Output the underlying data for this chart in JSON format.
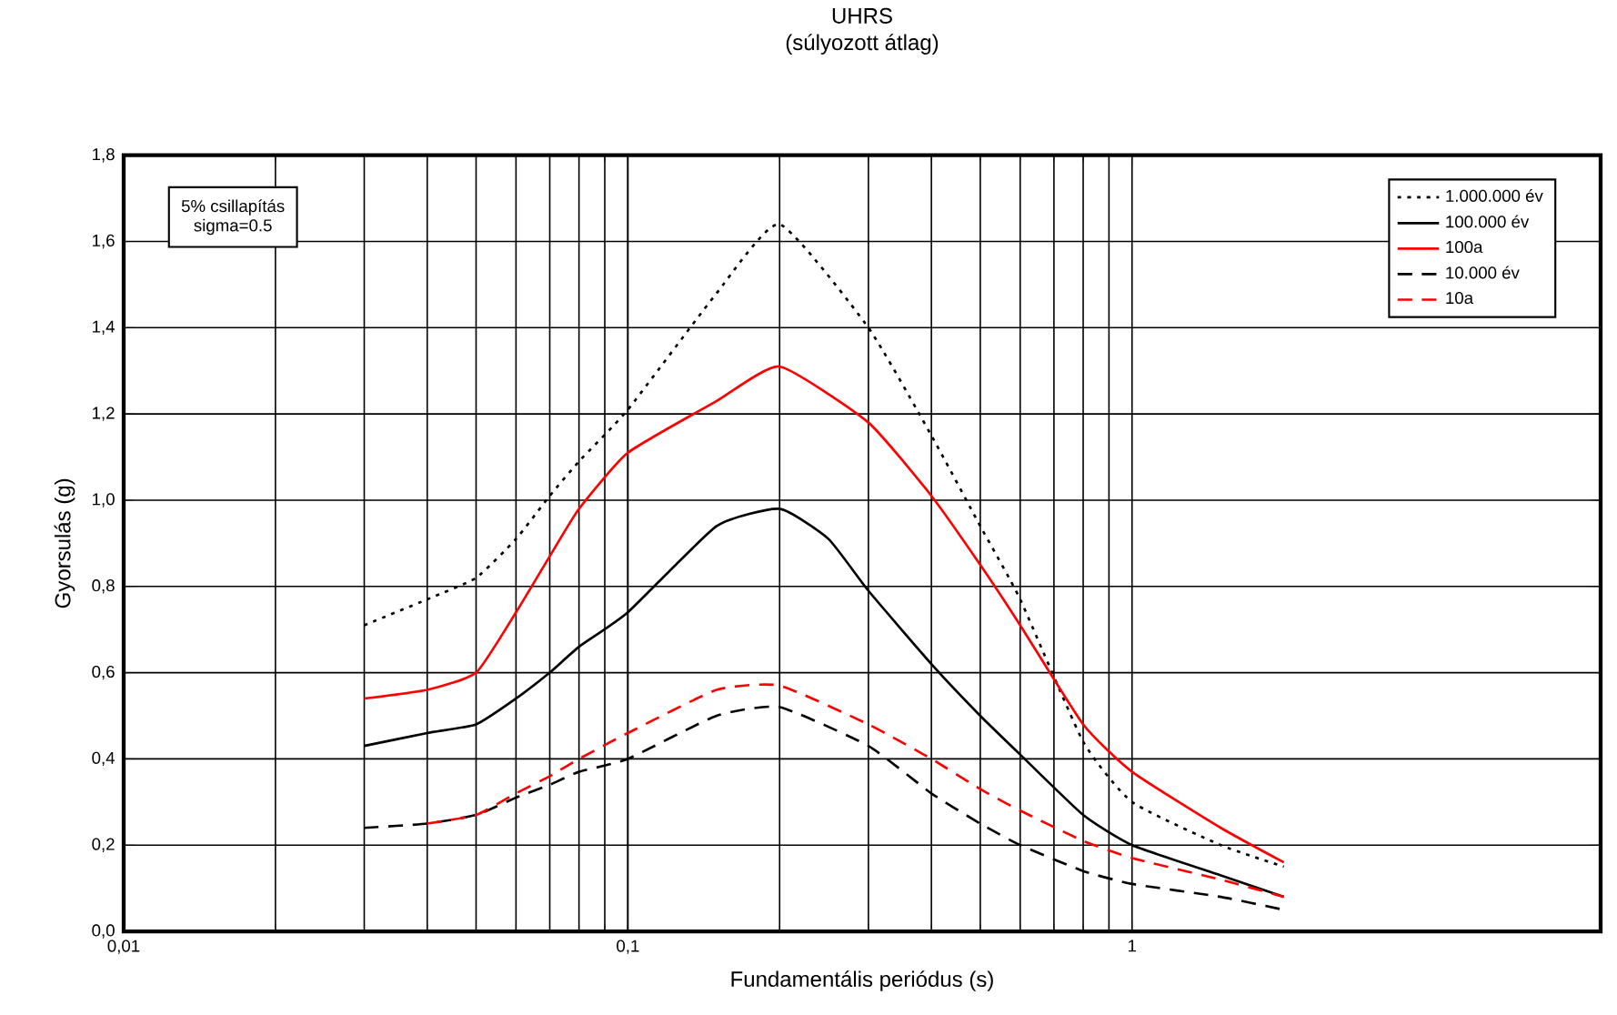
{
  "chart_data": {
    "type": "line",
    "title": "UHRS",
    "subtitle": "(súlyozott átlag)",
    "xlabel": "Fundamentális periódus (s)",
    "ylabel": "Gyorsulás (g)",
    "log": "x",
    "xlim": [
      0.01,
      8.5
    ],
    "ylim": [
      0,
      1.8
    ],
    "xticks": [
      {
        "value": 0.01,
        "label": "0,01"
      },
      {
        "value": 0.1,
        "label": "0,1"
      },
      {
        "value": 1,
        "label": "1"
      }
    ],
    "yticks": [
      {
        "value": 0,
        "label": "0,0"
      },
      {
        "value": 0.2,
        "label": "0,2"
      },
      {
        "value": 0.4,
        "label": "0,4"
      },
      {
        "value": 0.6,
        "label": "0,6"
      },
      {
        "value": 0.8,
        "label": "0,8"
      },
      {
        "value": 1.0,
        "label": "1,0"
      },
      {
        "value": 1.2,
        "label": "1,2"
      },
      {
        "value": 1.4,
        "label": "1,4"
      },
      {
        "value": 1.6,
        "label": "1,6"
      },
      {
        "value": 1.8,
        "label": "1,8"
      }
    ],
    "grid": true,
    "legend": "top right",
    "marker": "none",
    "annotations": [
      "5% csillapítás",
      "sigma=0.5"
    ],
    "series": [
      {
        "name": "1.000.000 év",
        "color": "#000000",
        "line_style": "dotted",
        "x": [
          0.03,
          0.04,
          0.05,
          0.06,
          0.07,
          0.08,
          0.1,
          0.15,
          0.2,
          0.3,
          0.4,
          0.5,
          0.6,
          0.8,
          1,
          1.5,
          2
        ],
        "values": [
          0.71,
          0.77,
          0.82,
          0.91,
          1.01,
          1.09,
          1.21,
          1.48,
          1.64,
          1.4,
          1.15,
          0.94,
          0.77,
          0.44,
          0.3,
          0.2,
          0.15
        ]
      },
      {
        "name": "100.000 év",
        "color": "#000000",
        "line_style": "solid",
        "x": [
          0.03,
          0.04,
          0.05,
          0.06,
          0.07,
          0.08,
          0.1,
          0.15,
          0.2,
          0.25,
          0.3,
          0.4,
          0.5,
          0.6,
          0.8,
          1,
          1.5,
          2
        ],
        "values": [
          0.43,
          0.46,
          0.48,
          0.54,
          0.6,
          0.66,
          0.74,
          0.94,
          0.98,
          0.91,
          0.79,
          0.62,
          0.5,
          0.41,
          0.27,
          0.2,
          0.13,
          0.08
        ]
      },
      {
        "name": "100a",
        "color": "#ff0000",
        "line_style": "solid",
        "x": [
          0.03,
          0.04,
          0.05,
          0.06,
          0.07,
          0.08,
          0.1,
          0.15,
          0.2,
          0.3,
          0.4,
          0.5,
          0.6,
          0.8,
          1,
          1.5,
          2
        ],
        "values": [
          0.54,
          0.56,
          0.6,
          0.74,
          0.87,
          0.98,
          1.11,
          1.23,
          1.31,
          1.18,
          1.01,
          0.85,
          0.71,
          0.48,
          0.37,
          0.24,
          0.16
        ]
      },
      {
        "name": "10.000 év",
        "color": "#000000",
        "line_style": "dashed",
        "x": [
          0.03,
          0.04,
          0.05,
          0.06,
          0.07,
          0.08,
          0.1,
          0.15,
          0.2,
          0.3,
          0.4,
          0.5,
          0.6,
          0.8,
          1,
          1.5,
          2
        ],
        "values": [
          0.24,
          0.25,
          0.27,
          0.31,
          0.34,
          0.37,
          0.4,
          0.5,
          0.52,
          0.43,
          0.32,
          0.25,
          0.2,
          0.14,
          0.11,
          0.08,
          0.05
        ]
      },
      {
        "name": "10a",
        "color": "#ff0000",
        "line_style": "dashed",
        "x": [
          0.04,
          0.05,
          0.06,
          0.07,
          0.08,
          0.1,
          0.15,
          0.2,
          0.3,
          0.4,
          0.5,
          0.6,
          0.8,
          1,
          1.5,
          2
        ],
        "values": [
          0.25,
          0.27,
          0.32,
          0.36,
          0.4,
          0.46,
          0.56,
          0.57,
          0.48,
          0.4,
          0.33,
          0.28,
          0.21,
          0.17,
          0.12,
          0.08
        ]
      }
    ]
  }
}
